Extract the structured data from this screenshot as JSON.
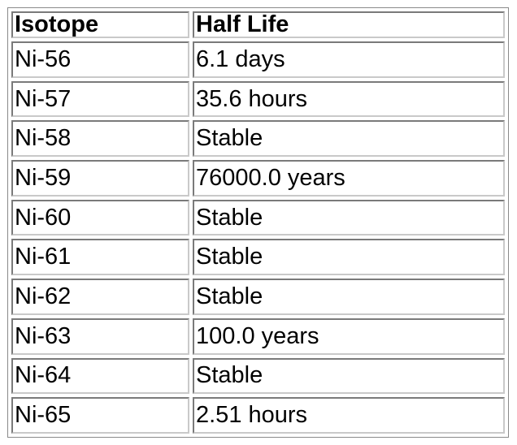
{
  "table": {
    "headers": [
      "Isotope",
      "Half Life"
    ],
    "rows": [
      [
        "Ni-56",
        "6.1 days"
      ],
      [
        "Ni-57",
        "35.6 hours"
      ],
      [
        "Ni-58",
        "Stable"
      ],
      [
        "Ni-59",
        "76000.0 years"
      ],
      [
        "Ni-60",
        "Stable"
      ],
      [
        "Ni-61",
        "Stable"
      ],
      [
        "Ni-62",
        "Stable"
      ],
      [
        "Ni-63",
        "100.0 years"
      ],
      [
        "Ni-64",
        "Stable"
      ],
      [
        "Ni-65",
        "2.51 hours"
      ]
    ]
  }
}
